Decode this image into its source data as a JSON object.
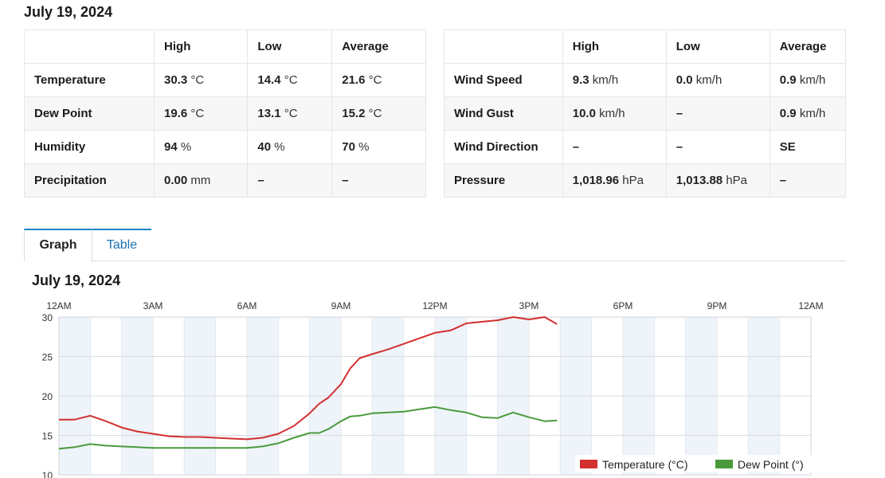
{
  "date_heading": "July 19, 2024",
  "summary_left": {
    "headers": [
      "",
      "High",
      "Low",
      "Average"
    ],
    "rows": [
      {
        "label": "Temperature",
        "high": [
          "30.3",
          "°C"
        ],
        "low": [
          "14.4",
          "°C"
        ],
        "avg": [
          "21.6",
          "°C"
        ]
      },
      {
        "label": "Dew Point",
        "high": [
          "19.6",
          "°C"
        ],
        "low": [
          "13.1",
          "°C"
        ],
        "avg": [
          "15.2",
          "°C"
        ]
      },
      {
        "label": "Humidity",
        "high": [
          "94",
          "%"
        ],
        "low": [
          "40",
          "%"
        ],
        "avg": [
          "70",
          "%"
        ]
      },
      {
        "label": "Precipitation",
        "high": [
          "0.00",
          "mm"
        ],
        "low": [
          "–",
          ""
        ],
        "avg": [
          "–",
          ""
        ]
      }
    ]
  },
  "summary_right": {
    "headers": [
      "",
      "High",
      "Low",
      "Average"
    ],
    "rows": [
      {
        "label": "Wind Speed",
        "high": [
          "9.3",
          "km/h"
        ],
        "low": [
          "0.0",
          "km/h"
        ],
        "avg": [
          "0.9",
          "km/h"
        ]
      },
      {
        "label": "Wind Gust",
        "high": [
          "10.0",
          "km/h"
        ],
        "low": [
          "–",
          ""
        ],
        "avg": [
          "0.9",
          "km/h"
        ]
      },
      {
        "label": "Wind Direction",
        "high": [
          "–",
          ""
        ],
        "low": [
          "–",
          ""
        ],
        "avg": [
          "SE",
          ""
        ]
      },
      {
        "label": "Pressure",
        "high": [
          "1,018.96",
          "hPa"
        ],
        "low": [
          "1,013.88",
          "hPa"
        ],
        "avg": [
          "–",
          ""
        ]
      }
    ]
  },
  "tabs": [
    {
      "label": "Graph",
      "active": true
    },
    {
      "label": "Table",
      "active": false
    }
  ],
  "chart_data": {
    "type": "line",
    "title": "July 19, 2024",
    "x_ticks": [
      "12AM",
      "3AM",
      "6AM",
      "9AM",
      "12PM",
      "3PM",
      "6PM",
      "9PM",
      "12AM"
    ],
    "x_unit": "hours",
    "xlim": [
      0,
      24
    ],
    "ylim": [
      10,
      30
    ],
    "y_ticks": [
      30,
      25,
      20,
      15,
      10
    ],
    "grid": true,
    "legend_position": "bottom-right",
    "series": [
      {
        "name": "Temperature (°C)",
        "color": "#d32f2f",
        "x": [
          0,
          0.5,
          1,
          1.5,
          2,
          2.5,
          3,
          3.5,
          4,
          4.5,
          5,
          5.5,
          6,
          6.5,
          7,
          7.5,
          8,
          8.3,
          8.6,
          9,
          9.3,
          9.6,
          10,
          10.5,
          11,
          11.5,
          12,
          12.5,
          13,
          13.5,
          14,
          14.5,
          15,
          15.5,
          15.9
        ],
        "values": [
          17.0,
          17.0,
          17.5,
          16.8,
          16.0,
          15.5,
          15.2,
          14.9,
          14.8,
          14.8,
          14.7,
          14.6,
          14.5,
          14.7,
          15.2,
          16.2,
          17.8,
          19.0,
          19.8,
          21.5,
          23.5,
          24.8,
          25.3,
          25.9,
          26.6,
          27.3,
          28.0,
          28.3,
          29.2,
          29.4,
          29.6,
          30.0,
          29.7,
          30.0,
          29.1
        ]
      },
      {
        "name": "Dew Point (°)",
        "color": "#4a9a3c",
        "x": [
          0,
          0.5,
          1,
          1.5,
          2,
          2.5,
          3,
          3.5,
          4,
          4.5,
          5,
          5.5,
          6,
          6.5,
          7,
          7.5,
          8,
          8.3,
          8.6,
          9,
          9.3,
          9.6,
          10,
          10.5,
          11,
          11.5,
          12,
          12.5,
          13,
          13.5,
          14,
          14.5,
          15,
          15.5,
          15.9
        ],
        "values": [
          13.3,
          13.5,
          13.9,
          13.7,
          13.6,
          13.5,
          13.4,
          13.4,
          13.4,
          13.4,
          13.4,
          13.4,
          13.4,
          13.6,
          14.0,
          14.7,
          15.3,
          15.3,
          15.8,
          16.8,
          17.4,
          17.5,
          17.8,
          17.9,
          18.0,
          18.3,
          18.6,
          18.2,
          17.9,
          17.3,
          17.2,
          17.9,
          17.3,
          16.8,
          16.9
        ]
      }
    ]
  }
}
